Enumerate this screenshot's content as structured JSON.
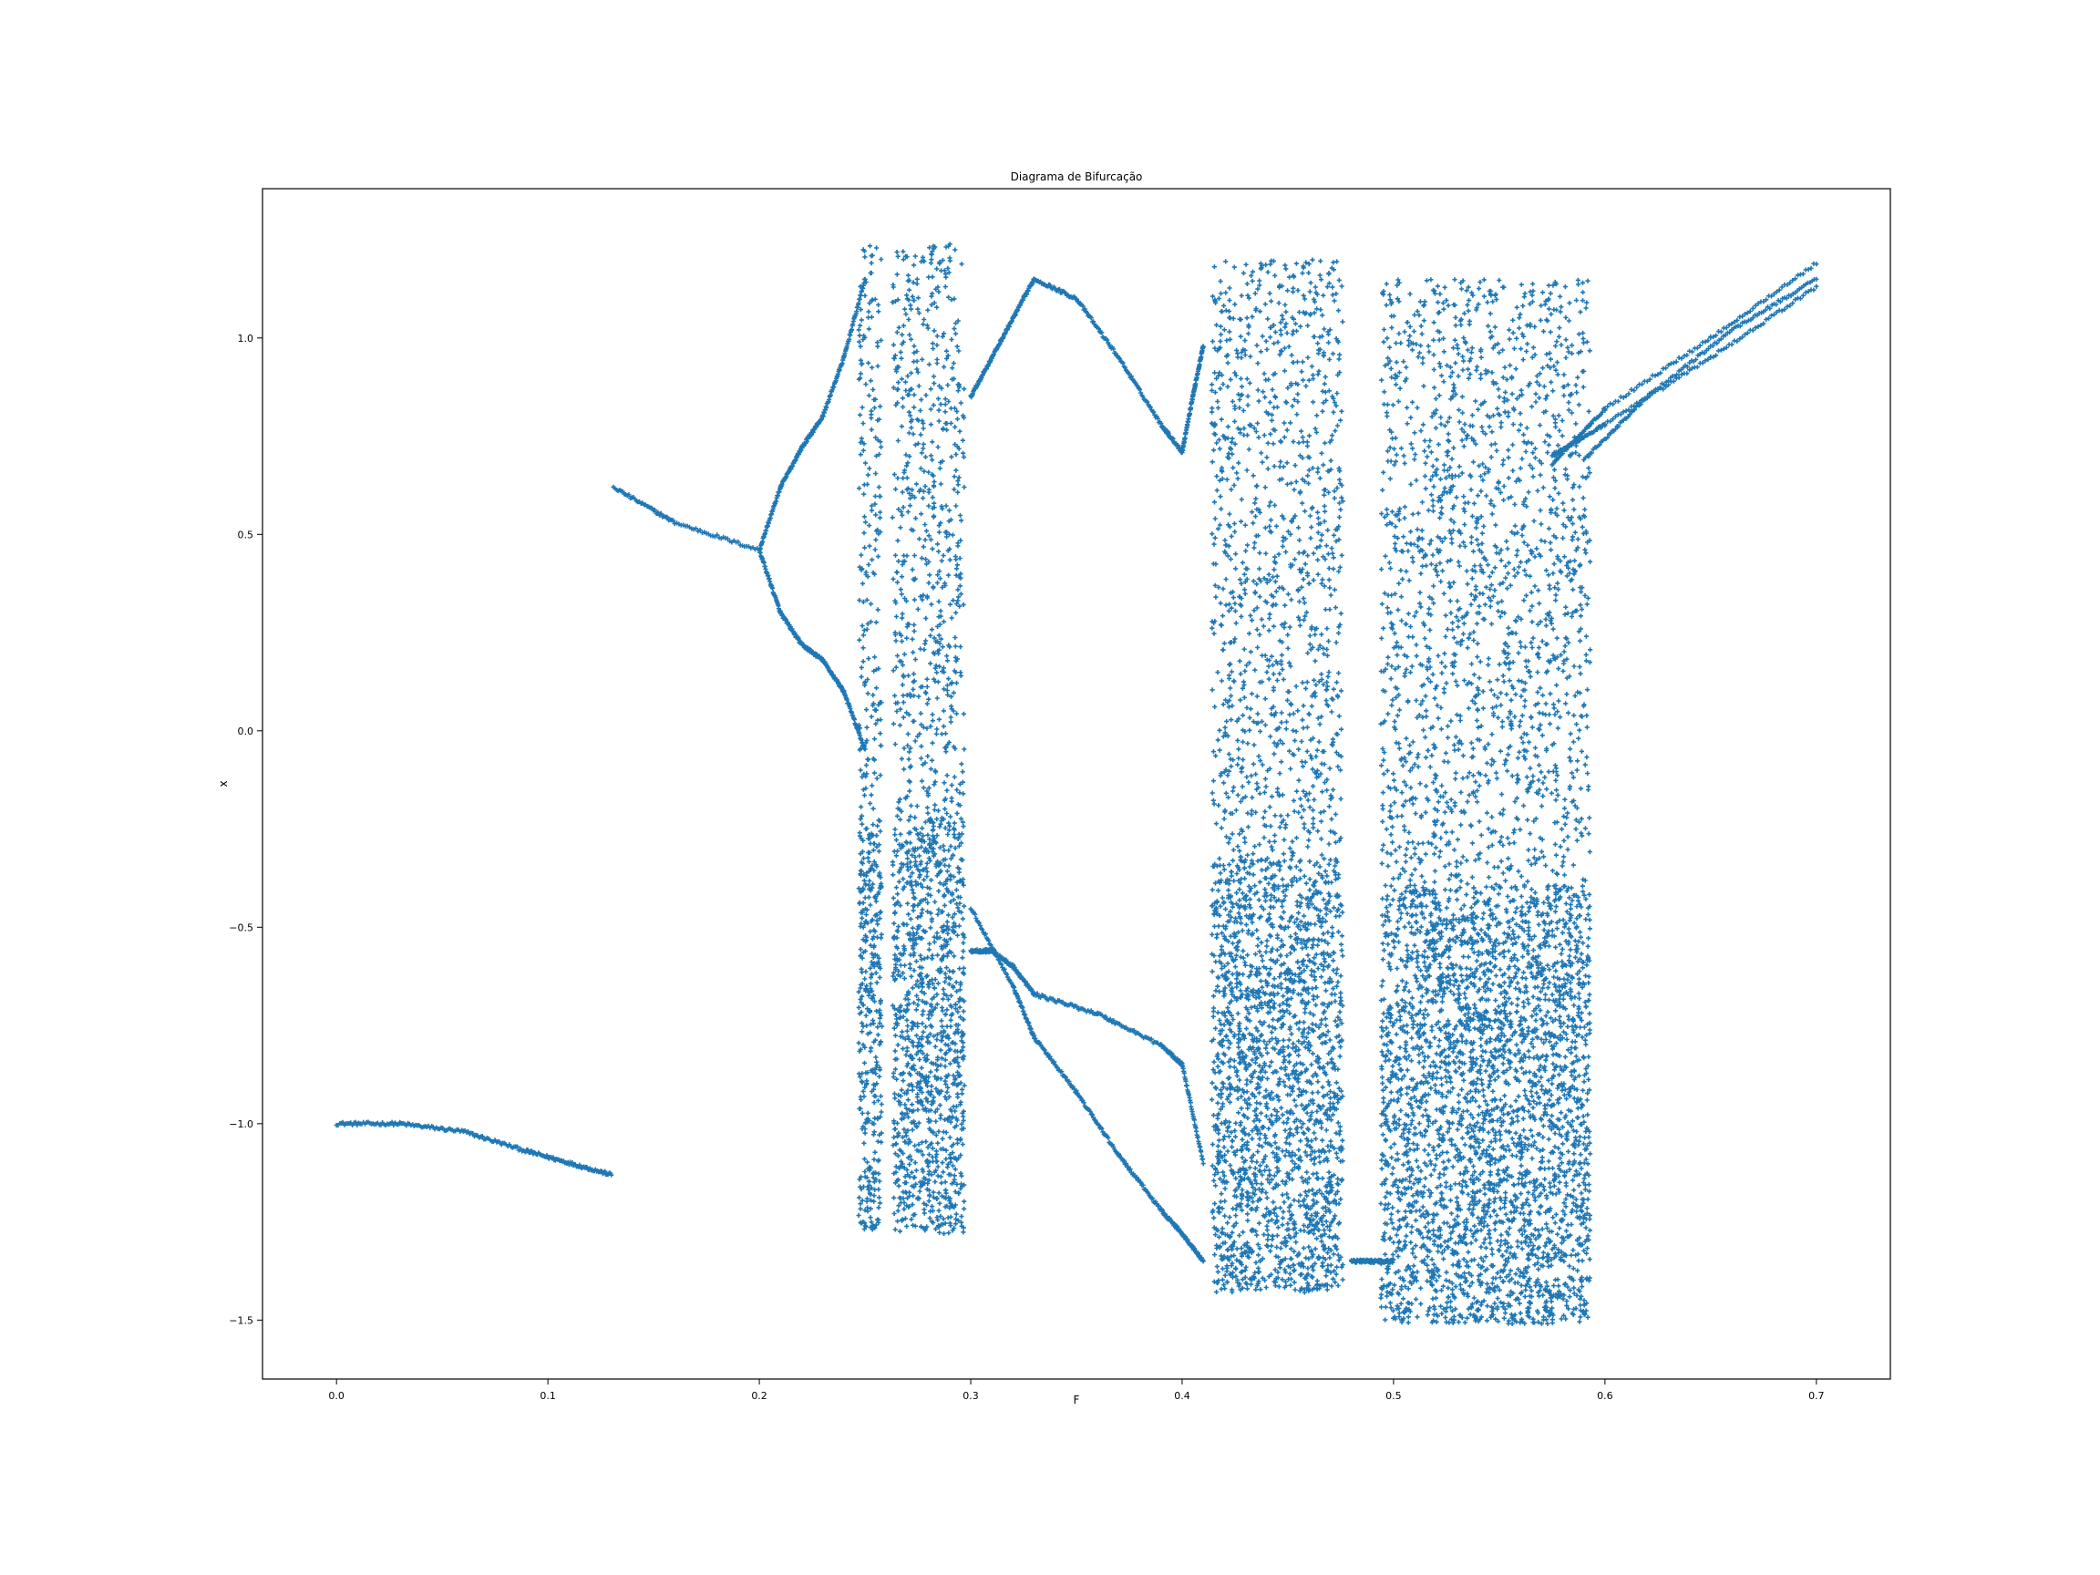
{
  "chart_data": {
    "type": "scatter",
    "title": "Diagrama de Bifurcação",
    "xlabel": "F",
    "ylabel": "x",
    "xlim": [
      -0.035,
      0.735
    ],
    "ylim": [
      -1.65,
      1.38
    ],
    "xticks": [
      0.0,
      0.1,
      0.2,
      0.3,
      0.4,
      0.5,
      0.6,
      0.7
    ],
    "xtick_labels": [
      "0.0",
      "0.1",
      "0.2",
      "0.3",
      "0.4",
      "0.5",
      "0.6",
      "0.7"
    ],
    "yticks": [
      1.0,
      0.5,
      0.0,
      -0.5,
      -1.0,
      -1.5
    ],
    "ytick_labels": [
      "1.0",
      "0.5",
      "0.0",
      "−0.5",
      "−1.0",
      "−1.5"
    ],
    "grid": false,
    "legend": "none",
    "marker": "+",
    "color": "#1f77b4",
    "series": [
      {
        "kind": "branches",
        "segments": [
          {
            "x": [
              0.0,
              0.03,
              0.06,
              0.09,
              0.11,
              0.13
            ],
            "y": [
              -1.0,
              -1.0,
              -1.02,
              -1.07,
              -1.1,
              -1.13
            ]
          },
          {
            "x": [
              0.131,
              0.16,
              0.2
            ],
            "y": [
              0.62,
              0.53,
              0.46
            ]
          },
          {
            "x": [
              0.2,
              0.21,
              0.22,
              0.23,
              0.24,
              0.25
            ],
            "y": [
              0.46,
              0.62,
              0.72,
              0.8,
              0.95,
              1.15
            ]
          },
          {
            "x": [
              0.2,
              0.21,
              0.22,
              0.23,
              0.24,
              0.25
            ],
            "y": [
              0.46,
              0.3,
              0.22,
              0.18,
              0.1,
              -0.05
            ]
          },
          {
            "x": [
              0.3,
              0.31,
              0.32,
              0.33,
              0.35,
              0.37,
              0.39,
              0.4
            ],
            "y": [
              0.85,
              0.95,
              1.05,
              1.15,
              1.1,
              0.95,
              0.78,
              0.71
            ]
          },
          {
            "x": [
              0.4,
              0.405,
              0.41
            ],
            "y": [
              0.71,
              0.85,
              0.98
            ]
          },
          {
            "x": [
              0.3,
              0.31,
              0.32,
              0.33,
              0.36,
              0.39,
              0.4
            ],
            "y": [
              -0.56,
              -0.56,
              -0.6,
              -0.67,
              -0.72,
              -0.8,
              -0.85
            ]
          },
          {
            "x": [
              0.3,
              0.32,
              0.33,
              0.35,
              0.37,
              0.39,
              0.4,
              0.41
            ],
            "y": [
              -0.45,
              -0.65,
              -0.78,
              -0.92,
              -1.08,
              -1.22,
              -1.28,
              -1.35
            ]
          },
          {
            "x": [
              0.4,
              0.41
            ],
            "y": [
              -0.85,
              -1.1
            ]
          },
          {
            "x": [
              0.48,
              0.49,
              0.5
            ],
            "y": [
              -1.35,
              -1.35,
              -1.35
            ]
          },
          {
            "x": [
              0.575,
              0.6,
              0.65,
              0.7
            ],
            "y": [
              0.68,
              0.82,
              1.0,
              1.19
            ]
          },
          {
            "x": [
              0.575,
              0.6,
              0.65,
              0.7
            ],
            "y": [
              0.7,
              0.78,
              0.95,
              1.13
            ]
          },
          {
            "x": [
              0.59,
              0.62,
              0.66,
              0.7
            ],
            "y": [
              0.69,
              0.85,
              1.02,
              1.15
            ]
          }
        ]
      },
      {
        "kind": "chaotic-bands",
        "bands": [
          {
            "x": [
              0.247,
              0.258
            ],
            "ymin": -1.27,
            "ymax": 1.24
          },
          {
            "x": [
              0.263,
              0.297
            ],
            "ymin": -1.28,
            "ymax": 1.24
          },
          {
            "x": [
              0.414,
              0.476
            ],
            "ymin": -1.43,
            "ymax": 1.2
          },
          {
            "x": [
              0.494,
              0.593
            ],
            "ymin": -1.51,
            "ymax": 1.15
          }
        ]
      }
    ]
  }
}
